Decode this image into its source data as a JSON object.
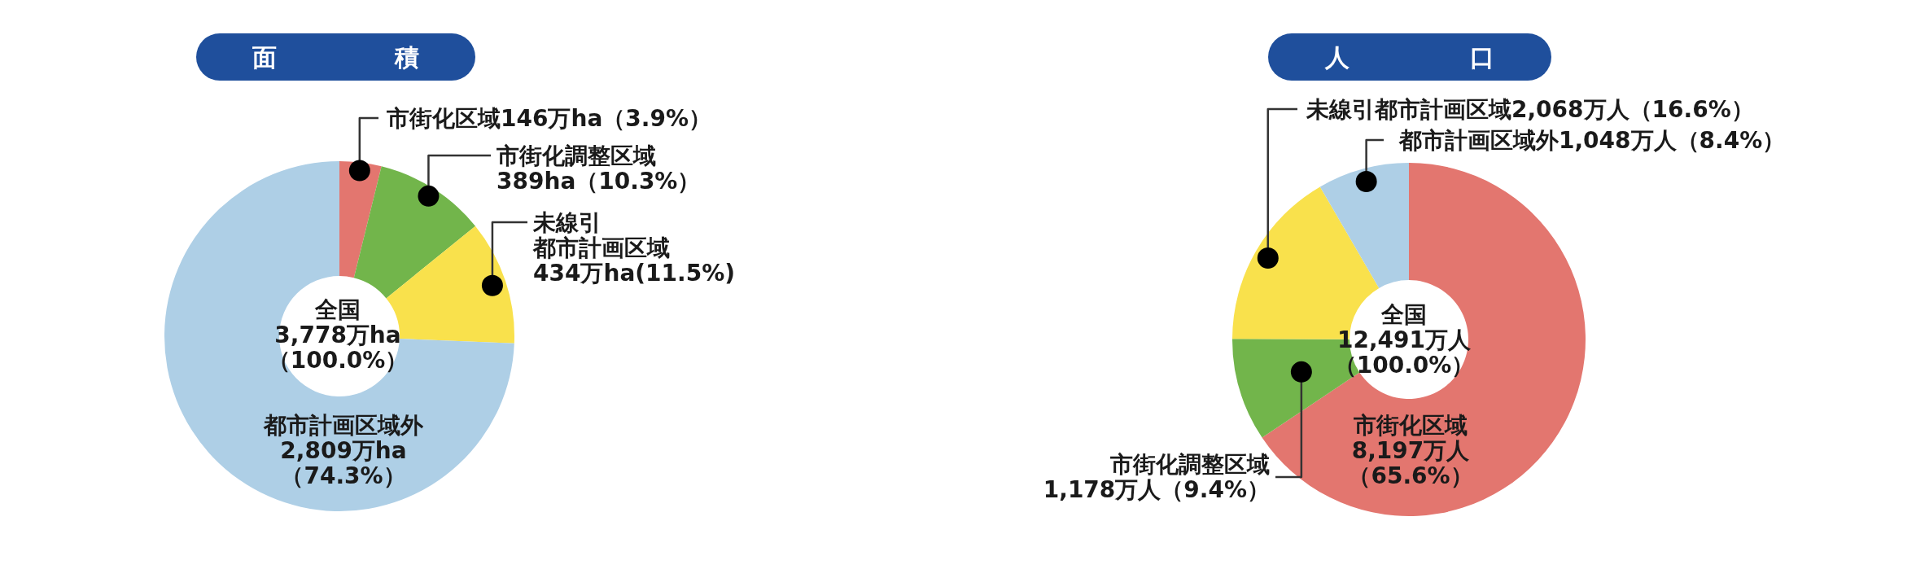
{
  "chart_data": [
    {
      "type": "donut",
      "title": "面積",
      "categories": [
        "市街化区域",
        "市街化調整区域",
        "未線引都市計画区域",
        "都市計画区域外"
      ],
      "values": [
        146,
        389,
        434,
        2809
      ],
      "colors": [
        "#e3766f",
        "#72b54b",
        "#f9e14c",
        "#aecfe6"
      ],
      "value_labels": [
        "146万ha（3.9%）",
        "389ha（10.3%）",
        "434万ha(11.5%)",
        "2,809万ha（74.3%）"
      ],
      "annotations": [
        "全国3,778万ha（100.0%）"
      ]
    },
    {
      "type": "donut",
      "title": "人口",
      "categories": [
        "市街化区域",
        "市街化調整区域",
        "未線引都市計画区域",
        "都市計画区域外"
      ],
      "values": [
        8197,
        1178,
        2068,
        1048
      ],
      "colors": [
        "#e3766f",
        "#72b54b",
        "#f9e14c",
        "#aecfe6"
      ],
      "value_labels": [
        "8,197万人（65.6%）",
        "1,178万人（9.4%）",
        "2,068万人（16.6%）",
        "1,048万人（8.4%）"
      ],
      "annotations": [
        "全国12,491万人（100.0%）"
      ]
    }
  ]
}
